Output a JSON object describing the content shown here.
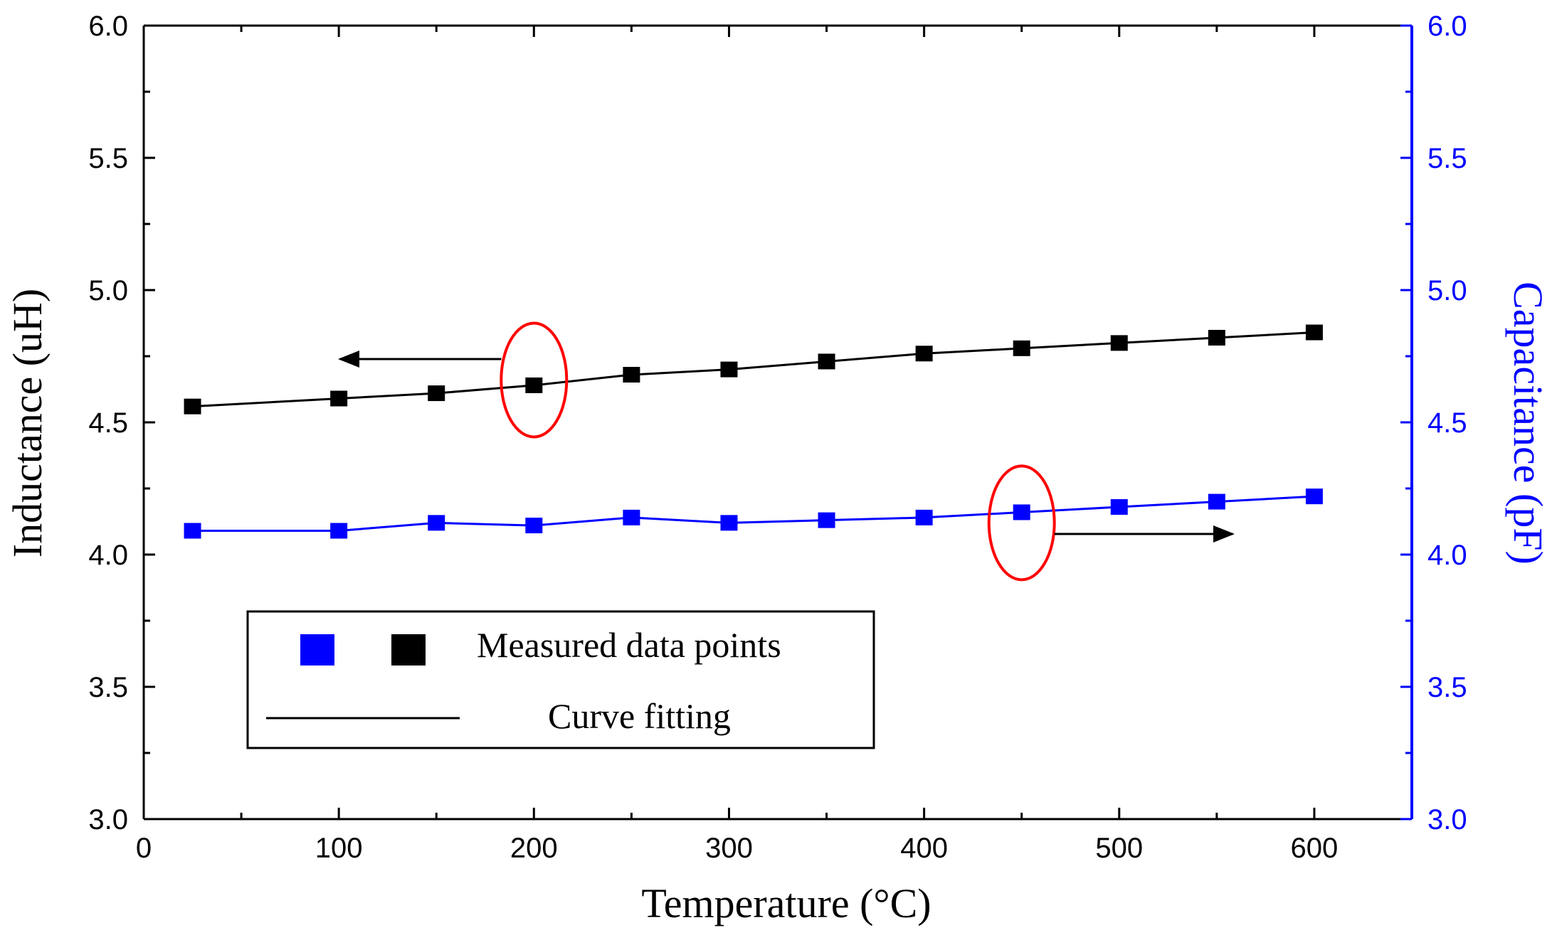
{
  "chart_data": {
    "type": "scatter",
    "xlabel": "Temperature (°C)",
    "ylabel_left": "Inductance (uH)",
    "ylabel_right": "Capacitance (pF)",
    "xlim": [
      0,
      650
    ],
    "ylim_left": [
      3.0,
      6.0
    ],
    "ylim_right": [
      3.0,
      6.0
    ],
    "x_ticks": [
      "0",
      "100",
      "200",
      "300",
      "400",
      "500",
      "600"
    ],
    "y_ticks_left": [
      "3.0",
      "3.5",
      "4.0",
      "4.5",
      "5.0",
      "5.5",
      "6.0"
    ],
    "y_ticks_right": [
      "3.0",
      "3.5",
      "4.0",
      "4.5",
      "5.0",
      "5.5",
      "6.0"
    ],
    "x_tick_values": [
      0,
      100,
      200,
      300,
      400,
      500,
      600
    ],
    "y_tick_values": [
      3.0,
      3.5,
      4.0,
      4.5,
      5.0,
      5.5,
      6.0
    ],
    "grid": false,
    "legend_position": "bottom-left",
    "legend": {
      "points_label": "Measured data points",
      "line_label": "Curve fitting"
    },
    "series": [
      {
        "axis": "left",
        "color": "#000000",
        "x": [
          25,
          100,
          150,
          200,
          250,
          300,
          350,
          400,
          450,
          500,
          550,
          600
        ],
        "y": [
          4.56,
          4.59,
          4.61,
          4.64,
          4.68,
          4.7,
          4.73,
          4.76,
          4.78,
          4.8,
          4.82,
          4.84
        ]
      },
      {
        "axis": "right",
        "color": "#0000ff",
        "x": [
          25,
          100,
          150,
          200,
          250,
          300,
          350,
          400,
          450,
          500,
          550,
          600
        ],
        "y": [
          4.09,
          4.09,
          4.12,
          4.11,
          4.14,
          4.12,
          4.13,
          4.14,
          4.16,
          4.18,
          4.2,
          4.22
        ]
      }
    ],
    "annotations": [
      {
        "type": "ellipse",
        "color": "#ff0000",
        "x": 200,
        "y": 4.66,
        "axis": "left"
      },
      {
        "type": "arrow",
        "direction": "left",
        "points_to": "left-axis",
        "color": "#000000"
      },
      {
        "type": "ellipse",
        "color": "#ff0000",
        "x": 450,
        "y": 4.12,
        "axis": "left"
      },
      {
        "type": "arrow",
        "direction": "right",
        "points_to": "right-axis",
        "color": "#000000"
      }
    ]
  }
}
